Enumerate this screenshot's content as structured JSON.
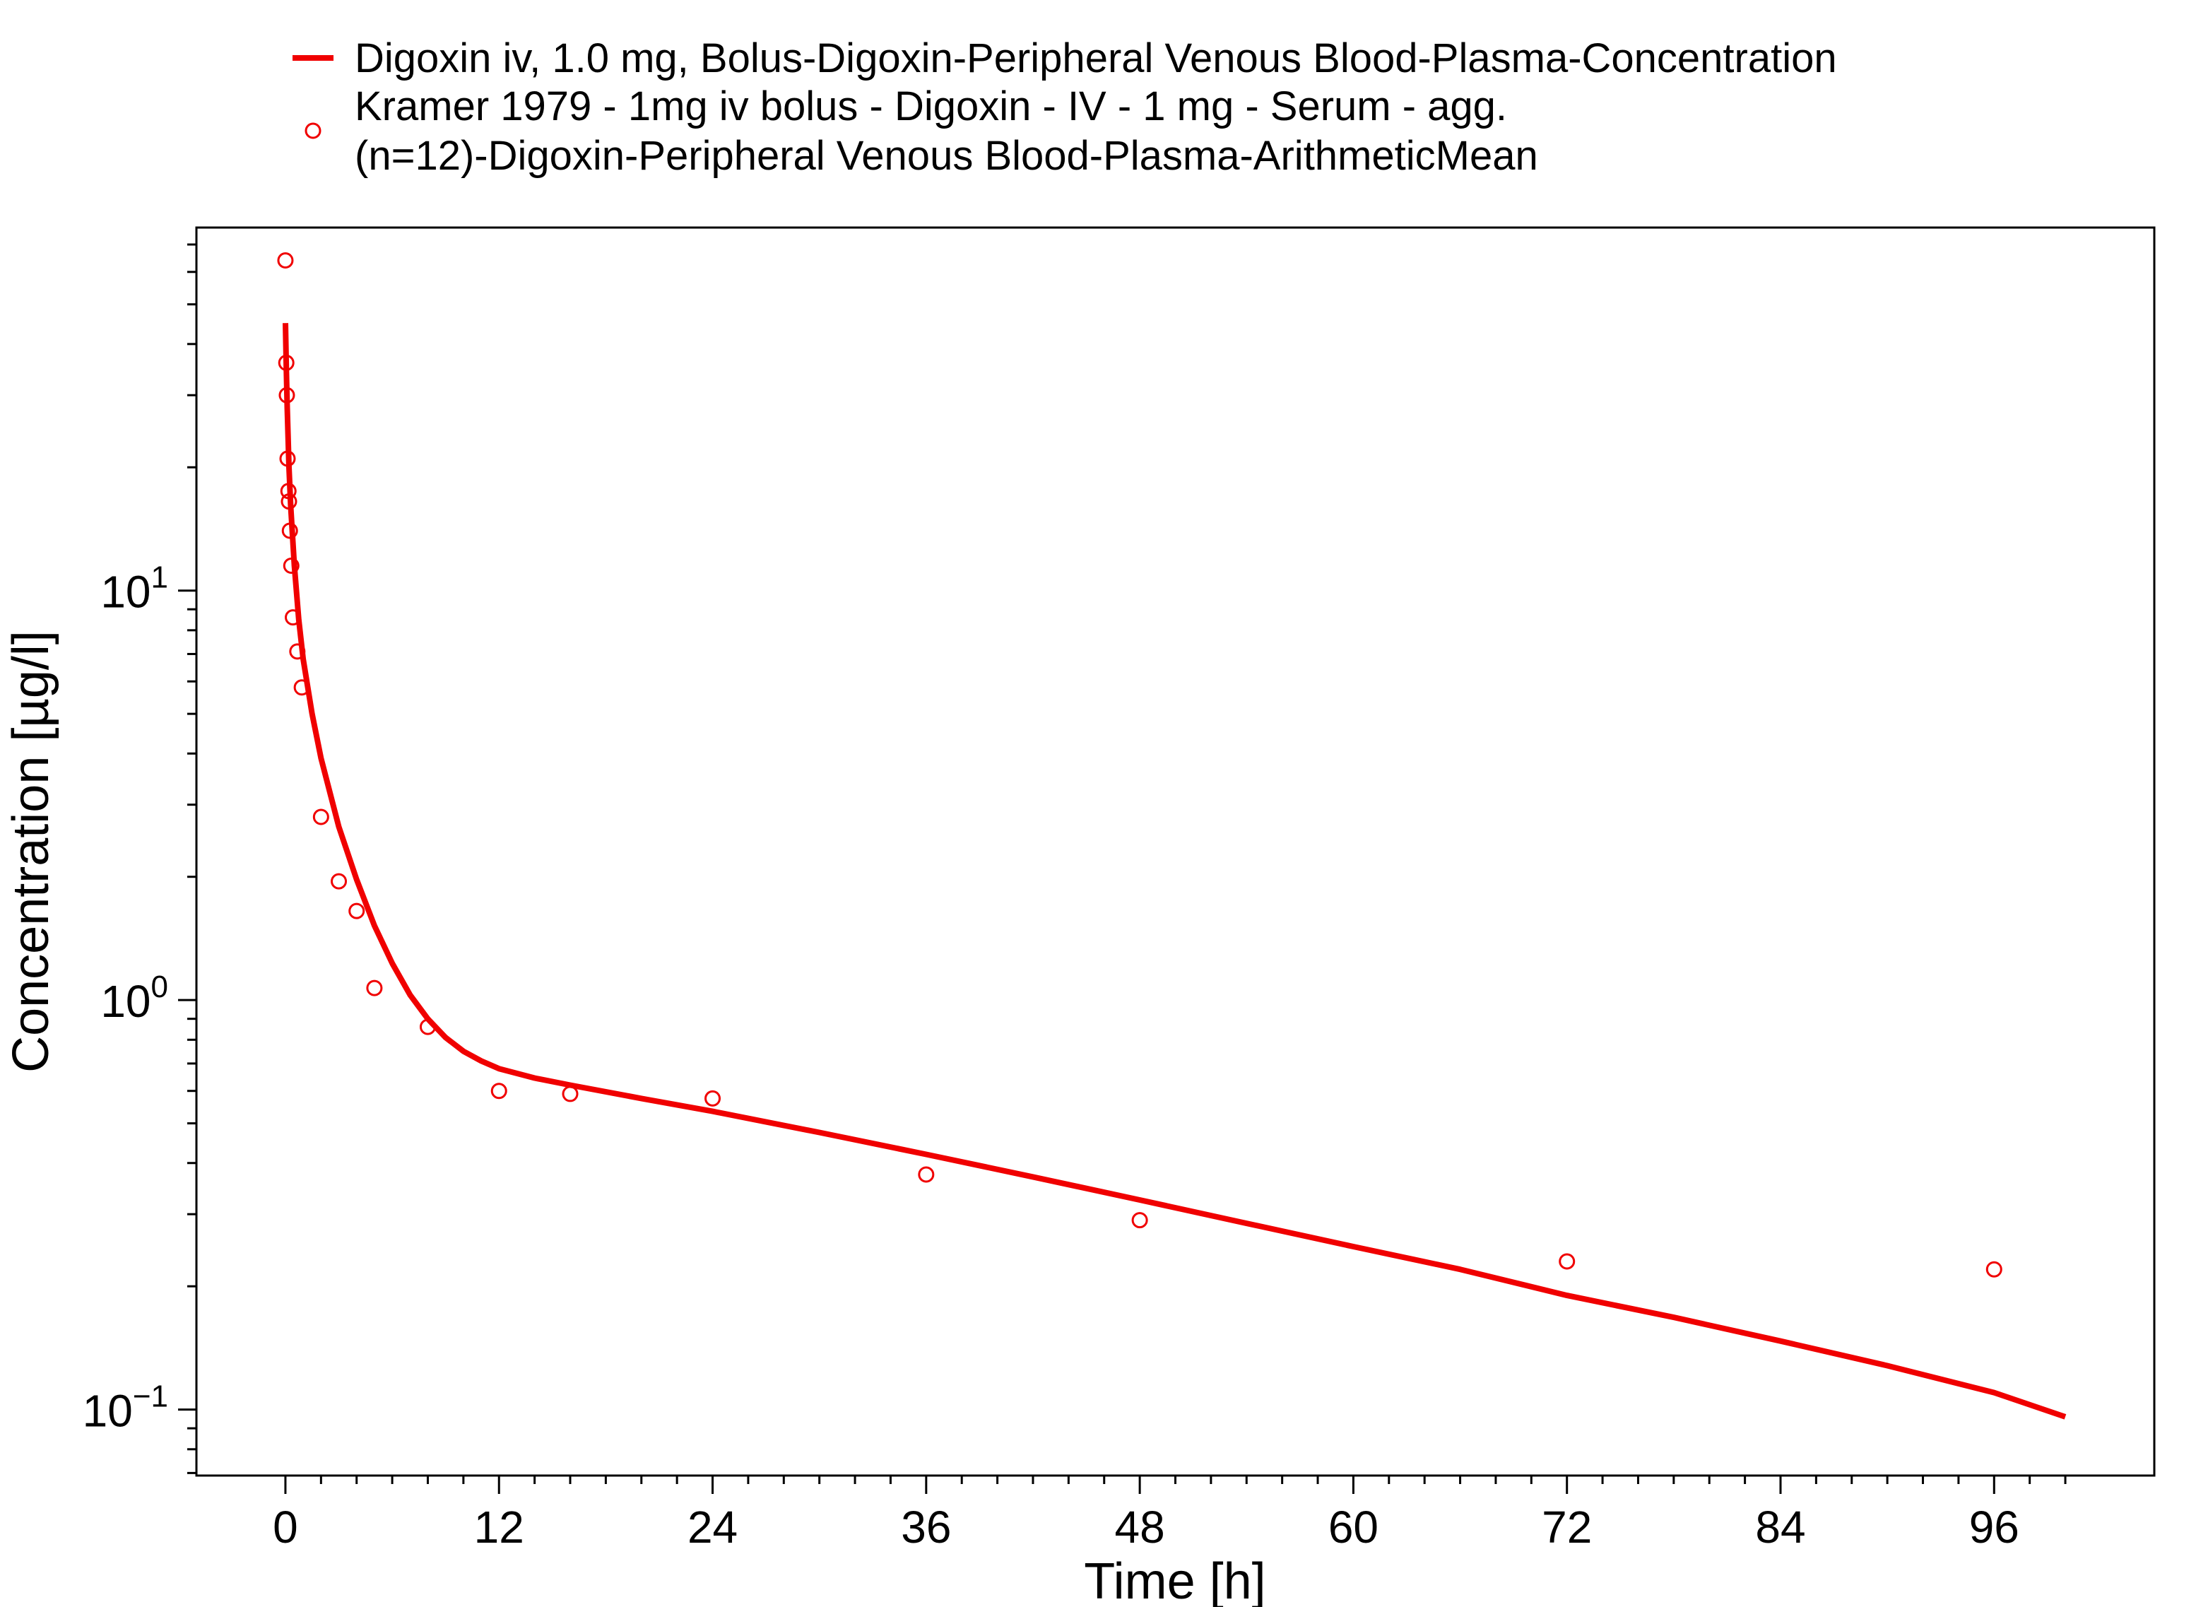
{
  "chart_data": {
    "type": "line",
    "xlabel": "Time [h]",
    "ylabel": "Concentration [µg/l]",
    "x_scale": "linear",
    "y_scale": "log",
    "xlim": [
      -5,
      105
    ],
    "ylim": [
      0.069,
      77
    ],
    "x_ticks": [
      0,
      12,
      24,
      36,
      48,
      60,
      72,
      84,
      96
    ],
    "y_ticks": [
      {
        "base": "10",
        "exp": "−1",
        "value": 0.1
      },
      {
        "base": "10",
        "exp": "0",
        "value": 1
      },
      {
        "base": "10",
        "exp": "1",
        "value": 10
      }
    ],
    "grid": false,
    "legend_position": "top",
    "series": [
      {
        "name": "Digoxin iv, 1.0 mg, Bolus-Digoxin-Peripheral Venous Blood-Plasma-Concentration",
        "kind": "line",
        "color": "#f00000",
        "x": [
          0,
          0.05,
          0.1,
          0.2,
          0.3,
          0.5,
          0.75,
          1,
          1.5,
          2,
          3,
          4,
          5,
          6,
          7,
          8,
          9,
          10,
          11,
          12,
          14,
          16,
          20,
          24,
          30,
          36,
          42,
          48,
          54,
          60,
          66,
          72,
          78,
          84,
          90,
          96,
          100
        ],
        "y": [
          45,
          35,
          28,
          20,
          16,
          11.5,
          8.5,
          6.8,
          5.0,
          3.9,
          2.65,
          1.97,
          1.52,
          1.23,
          1.03,
          0.9,
          0.81,
          0.75,
          0.71,
          0.68,
          0.645,
          0.62,
          0.575,
          0.535,
          0.475,
          0.42,
          0.37,
          0.325,
          0.285,
          0.25,
          0.22,
          0.19,
          0.168,
          0.147,
          0.128,
          0.11,
          0.096
        ]
      },
      {
        "name_lines": [
          "Kramer 1979 - 1mg iv bolus - Digoxin - IV - 1 mg - Serum - agg.",
          "(n=12)-Digoxin-Peripheral Venous Blood-Plasma-ArithmeticMean"
        ],
        "kind": "scatter",
        "color": "#f00000",
        "x": [
          0,
          0.05,
          0.08,
          0.12,
          0.17,
          0.2,
          0.25,
          0.33,
          0.42,
          0.67,
          0.92,
          2,
          3,
          4,
          5,
          8,
          12,
          16,
          24,
          36,
          48,
          72,
          96
        ],
        "y": [
          64,
          36,
          30,
          21,
          17.5,
          16.5,
          14,
          11.5,
          8.6,
          7.1,
          5.8,
          2.8,
          1.95,
          1.65,
          1.07,
          0.86,
          0.6,
          0.59,
          0.575,
          0.375,
          0.29,
          0.23,
          0.22
        ]
      }
    ]
  }
}
